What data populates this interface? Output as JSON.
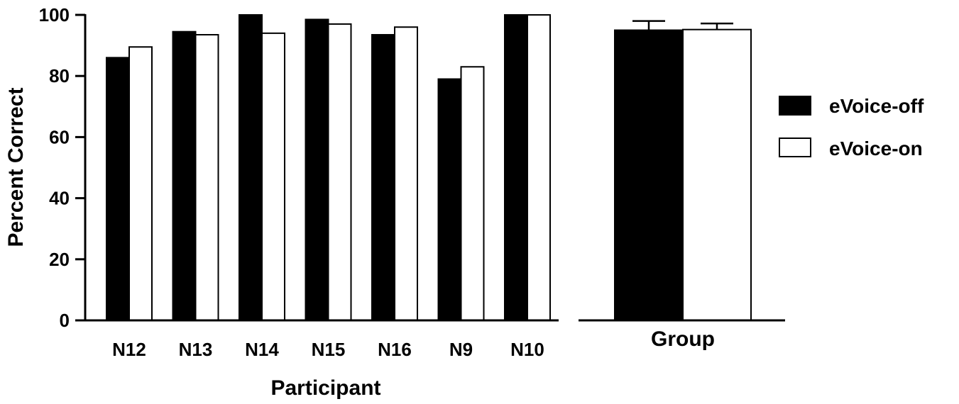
{
  "chart_data": [
    {
      "type": "bar",
      "categories": [
        "N12",
        "N13",
        "N14",
        "N15",
        "N16",
        "N9",
        "N10"
      ],
      "series": [
        {
          "name": "eVoice-off",
          "values": [
            86,
            94.5,
            100,
            98.5,
            93.5,
            79,
            100
          ]
        },
        {
          "name": "eVoice-on",
          "values": [
            89.5,
            93.5,
            94,
            97,
            96,
            83,
            100
          ]
        }
      ],
      "xlabel": "Participant",
      "ylabel": "Percent Correct",
      "ylim": [
        0,
        100
      ],
      "yticks": [
        "0",
        "20",
        "40",
        "60",
        "80",
        "100"
      ],
      "grid": false
    },
    {
      "type": "bar",
      "categories": [
        "Group"
      ],
      "series": [
        {
          "name": "eVoice-off",
          "values": [
            95
          ],
          "error": [
            3
          ]
        },
        {
          "name": "eVoice-on",
          "values": [
            95.2
          ],
          "error": [
            2
          ]
        }
      ],
      "ylim": [
        0,
        100
      ]
    }
  ],
  "legend": {
    "position": "right",
    "entries": [
      {
        "label": "eVoice-off",
        "fill": "#000000"
      },
      {
        "label": "eVoice-on",
        "fill": "#ffffff"
      }
    ]
  },
  "colors": {
    "off": "#000000",
    "on": "#ffffff",
    "stroke": "#000000"
  }
}
